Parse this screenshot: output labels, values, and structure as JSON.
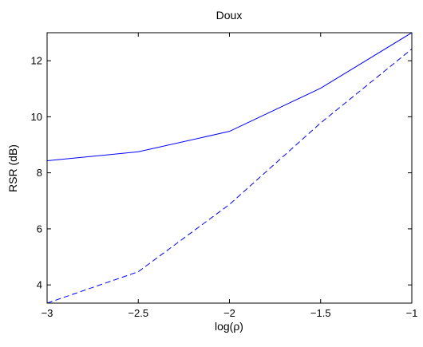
{
  "chart_data": {
    "type": "line",
    "title": "Doux",
    "xlabel": "log(ρ)",
    "ylabel": "RSR (dB)",
    "xlim": [
      -3,
      -1
    ],
    "ylim": [
      3.35,
      13
    ],
    "x_ticks": [
      -3,
      -2.5,
      -2,
      -1.5,
      -1
    ],
    "x_tick_labels": [
      "−3",
      "−2.5",
      "−2",
      "−1.5",
      "−1"
    ],
    "y_ticks": [
      4,
      6,
      8,
      10,
      12
    ],
    "y_tick_labels": [
      "4",
      "6",
      "8",
      "10",
      "12"
    ],
    "grid": false,
    "legend": null,
    "series": [
      {
        "style": "solid",
        "color": "#0000ff",
        "x": [
          -3,
          -2.5,
          -2,
          -1.5,
          -1
        ],
        "y": [
          8.43,
          8.75,
          9.48,
          11.02,
          13.0
        ]
      },
      {
        "style": "dashed",
        "color": "#0000ff",
        "x": [
          -3,
          -2.5,
          -2,
          -1.5,
          -1
        ],
        "y": [
          3.35,
          4.47,
          6.87,
          9.78,
          12.42
        ]
      }
    ]
  }
}
